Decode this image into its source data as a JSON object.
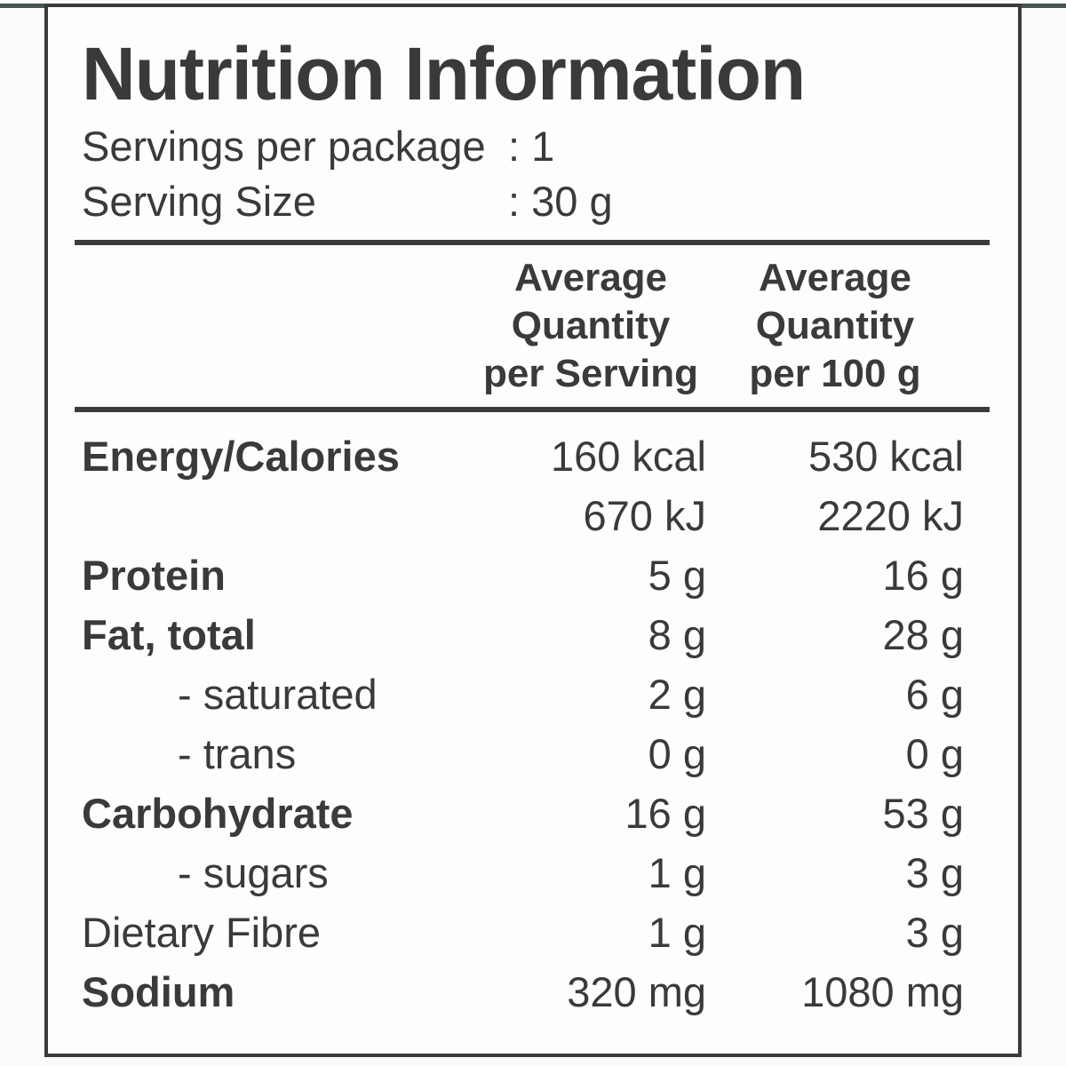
{
  "label": {
    "title": "Nutrition Information",
    "serving_info": [
      {
        "label": "Servings per package",
        "value": ": 1"
      },
      {
        "label": "Serving Size",
        "value": ": 30 g"
      }
    ],
    "column_headers": {
      "per_serving": "Average\nQuantity\nper Serving",
      "per_100g": "Average\nQuantity\nper 100 g"
    },
    "rows": [
      {
        "label": "Energy/Calories",
        "per_serving": "160 kcal",
        "per_100g": "530 kcal"
      },
      {
        "label": "",
        "per_serving": "670 kJ",
        "per_100g": "2220 kJ"
      },
      {
        "label": "Protein",
        "per_serving": "5 g",
        "per_100g": "16 g"
      },
      {
        "label": "Fat, total",
        "per_serving": "8 g",
        "per_100g": "28 g"
      },
      {
        "label": "- saturated",
        "per_serving": "2 g",
        "per_100g": "6 g"
      },
      {
        "label": "- trans",
        "per_serving": "0 g",
        "per_100g": "0 g"
      },
      {
        "label": "Carbohydrate",
        "per_serving": "16 g",
        "per_100g": "53 g"
      },
      {
        "label": "- sugars",
        "per_serving": "1 g",
        "per_100g": "3 g"
      },
      {
        "label": "Dietary Fibre",
        "per_serving": "1 g",
        "per_100g": "3 g"
      },
      {
        "label": "Sodium",
        "per_serving": "320 mg",
        "per_100g": "1080 mg"
      }
    ],
    "colors": {
      "text": "#3a3a3c",
      "border": "#3b3b3b",
      "top_edge_line": "#47534e",
      "background": "#fdfdfd"
    }
  }
}
